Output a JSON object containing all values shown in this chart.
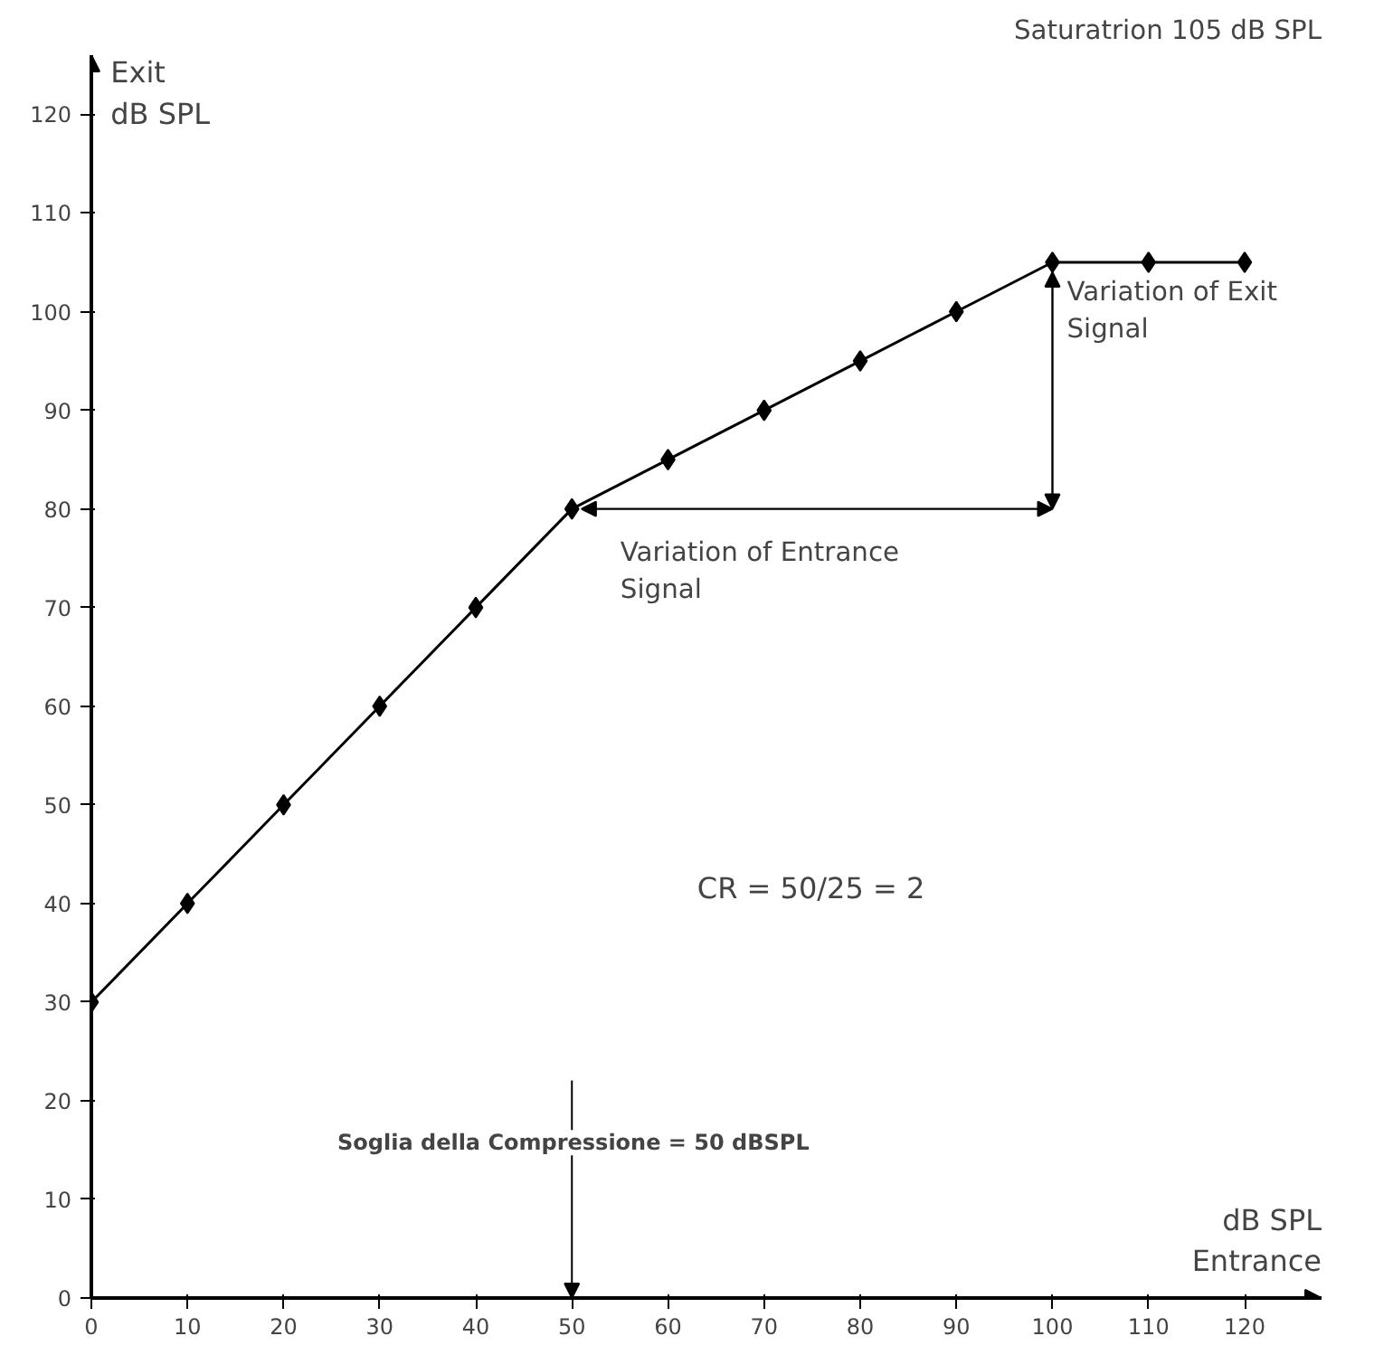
{
  "chart_data": {
    "type": "line",
    "title": "Saturatrion 105 dB SPL",
    "xlabel": "dB SPL\nEntrance",
    "ylabel": "Exit\ndB SPL",
    "x": [
      0,
      10,
      20,
      30,
      40,
      50,
      60,
      70,
      80,
      90,
      100,
      110,
      120
    ],
    "series": [
      {
        "color": "#000000",
        "values": [
          30,
          40,
          50,
          60,
          70,
          80,
          85,
          90,
          95,
          100,
          105,
          105,
          105
        ]
      }
    ],
    "xlim": [
      0,
      128
    ],
    "ylim": [
      0,
      126
    ],
    "xticks": [
      0,
      10,
      20,
      30,
      40,
      50,
      60,
      70,
      80,
      90,
      100,
      110,
      120
    ],
    "yticks": [
      0,
      10,
      20,
      30,
      40,
      50,
      60,
      70,
      80,
      90,
      100,
      110,
      120
    ],
    "marker": "diamond",
    "line_style": "solid",
    "grid": false,
    "annotations": [
      {
        "text": "Variation of Exit\nSignal",
        "x": 100,
        "y": 105
      },
      "Variation of Entrance\nSignal",
      "CR = 50/25 = 2",
      "Soglia della Compressione = 50 dBSPL"
    ]
  }
}
